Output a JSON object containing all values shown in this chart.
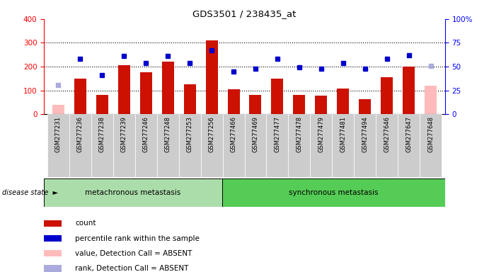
{
  "title": "GDS3501 / 238435_at",
  "samples": [
    "GSM277231",
    "GSM277236",
    "GSM277238",
    "GSM277239",
    "GSM277246",
    "GSM277248",
    "GSM277253",
    "GSM277256",
    "GSM277466",
    "GSM277469",
    "GSM277477",
    "GSM277478",
    "GSM277479",
    "GSM277481",
    "GSM277494",
    "GSM277646",
    "GSM277647",
    "GSM277648"
  ],
  "bar_values": [
    40,
    150,
    80,
    205,
    175,
    220,
    125,
    310,
    105,
    80,
    150,
    80,
    78,
    108,
    62,
    155,
    200,
    120
  ],
  "bar_absent": [
    true,
    false,
    false,
    false,
    false,
    false,
    false,
    false,
    false,
    false,
    false,
    false,
    false,
    false,
    false,
    false,
    false,
    true
  ],
  "percentile_values": [
    31,
    58,
    41,
    61,
    54,
    61,
    54,
    67,
    45,
    48,
    58,
    49,
    48,
    54,
    48,
    58,
    62,
    51
  ],
  "percentile_absent": [
    true,
    false,
    false,
    false,
    false,
    false,
    false,
    false,
    false,
    false,
    false,
    false,
    false,
    false,
    false,
    false,
    false,
    true
  ],
  "group1_label": "metachronous metastasis",
  "group1_count": 8,
  "group2_label": "synchronous metastasis",
  "group2_count": 10,
  "disease_state_label": "disease state",
  "ylim_left": [
    0,
    400
  ],
  "ylim_right": [
    0,
    100
  ],
  "left_ticks": [
    0,
    100,
    200,
    300,
    400
  ],
  "right_ticks": [
    0,
    25,
    50,
    75,
    100
  ],
  "bar_color_normal": "#cc1100",
  "bar_color_absent": "#ffbbbb",
  "dot_color_normal": "#0000cc",
  "dot_color_absent": "#aaaadd",
  "group1_bg": "#aaddaa",
  "group2_bg": "#55cc55",
  "header_bg": "#cccccc",
  "legend_items": [
    {
      "color": "#cc1100",
      "label": "count"
    },
    {
      "color": "#0000cc",
      "label": "percentile rank within the sample"
    },
    {
      "color": "#ffbbbb",
      "label": "value, Detection Call = ABSENT"
    },
    {
      "color": "#aaaadd",
      "label": "rank, Detection Call = ABSENT"
    }
  ]
}
